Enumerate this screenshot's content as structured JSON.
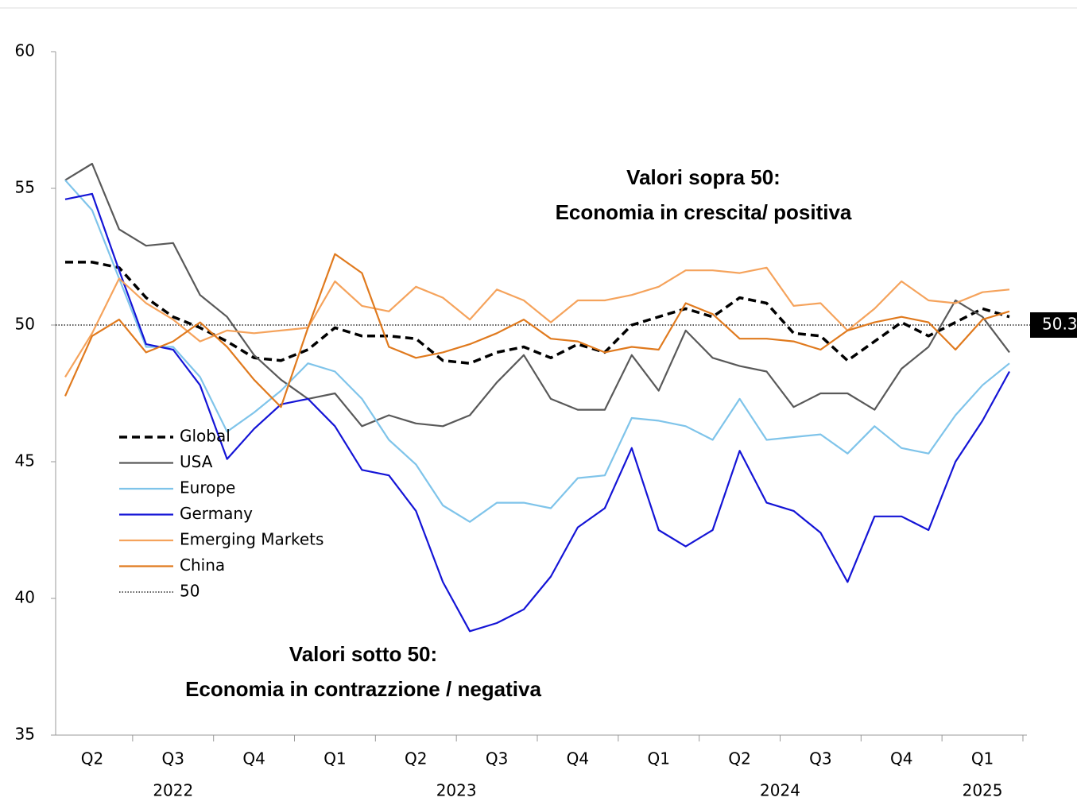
{
  "chart_data": {
    "type": "line",
    "quarters": [
      "Q2",
      "Q3",
      "Q4",
      "Q1",
      "Q2",
      "Q3",
      "Q4",
      "Q1",
      "Q2",
      "Q3",
      "Q4",
      "Q1"
    ],
    "years": [
      "2022",
      "2023",
      "2024",
      "2025"
    ],
    "ylim": [
      35,
      60
    ],
    "yticks": [
      35,
      40,
      45,
      50,
      55,
      60
    ],
    "series": [
      {
        "name": "Global",
        "color": "#000000",
        "dashed": true,
        "values": [
          52.3,
          52.3,
          52.1,
          51.0,
          50.3,
          49.9,
          49.4,
          48.8,
          48.7,
          49.1,
          49.9,
          49.6,
          49.6,
          49.5,
          48.7,
          48.6,
          49.0,
          49.2,
          48.8,
          49.3,
          49.0,
          50.0,
          50.3,
          50.6,
          50.3,
          51.0,
          50.8,
          49.7,
          49.6,
          48.7,
          49.4,
          50.1,
          49.6,
          50.1,
          50.6,
          50.3
        ]
      },
      {
        "name": "USA",
        "color": "#595959",
        "values": [
          55.3,
          55.9,
          53.5,
          52.9,
          53.0,
          51.1,
          50.3,
          48.9,
          48.0,
          47.3,
          47.5,
          46.3,
          46.7,
          46.4,
          46.3,
          46.7,
          47.9,
          48.9,
          47.3,
          46.9,
          46.9,
          48.9,
          47.6,
          49.8,
          48.8,
          48.5,
          48.3,
          47.0,
          47.5,
          47.5,
          46.9,
          48.4,
          49.2,
          50.9,
          50.3,
          49.0
        ]
      },
      {
        "name": "Europe",
        "color": "#7fc4ea",
        "values": [
          55.3,
          54.2,
          51.7,
          49.2,
          49.2,
          48.1,
          46.1,
          46.8,
          47.6,
          48.6,
          48.3,
          47.3,
          45.8,
          44.9,
          43.4,
          42.8,
          43.5,
          43.5,
          43.3,
          44.4,
          44.5,
          46.6,
          46.5,
          46.3,
          45.8,
          47.3,
          45.8,
          45.9,
          46.0,
          45.3,
          46.3,
          45.5,
          45.3,
          46.7,
          47.8,
          48.6
        ]
      },
      {
        "name": "Germany",
        "color": "#1414d6",
        "values": [
          54.6,
          54.8,
          52.0,
          49.3,
          49.1,
          47.8,
          45.1,
          46.2,
          47.1,
          47.3,
          46.3,
          44.7,
          44.5,
          43.2,
          40.6,
          38.8,
          39.1,
          39.6,
          40.8,
          42.6,
          43.3,
          45.5,
          42.5,
          41.9,
          42.5,
          45.4,
          43.5,
          43.2,
          42.4,
          40.6,
          43.0,
          43.0,
          42.5,
          45.0,
          46.5,
          48.3
        ]
      },
      {
        "name": "Emerging Markets",
        "color": "#f5a35c",
        "values": [
          48.1,
          49.7,
          51.7,
          50.8,
          50.2,
          49.4,
          49.8,
          49.7,
          49.8,
          49.9,
          51.6,
          50.7,
          50.5,
          51.4,
          51.0,
          50.2,
          51.3,
          50.9,
          50.1,
          50.9,
          50.9,
          51.1,
          51.4,
          52.0,
          52.0,
          51.9,
          52.1,
          50.7,
          50.8,
          49.8,
          50.6,
          51.6,
          50.9,
          50.8,
          51.2,
          51.3
        ]
      },
      {
        "name": "China",
        "color": "#e07a1e",
        "values": [
          47.4,
          49.6,
          50.2,
          49.0,
          49.4,
          50.1,
          49.2,
          48.0,
          47.0,
          49.9,
          52.6,
          51.9,
          49.2,
          48.8,
          49.0,
          49.3,
          49.7,
          50.2,
          49.5,
          49.4,
          49.0,
          49.2,
          49.1,
          50.8,
          50.4,
          49.5,
          49.5,
          49.4,
          49.1,
          49.8,
          50.1,
          50.3,
          50.1,
          49.1,
          50.2,
          50.5
        ]
      }
    ],
    "reference_line": {
      "name": "50",
      "value": 50
    },
    "annotations": [
      {
        "lines": [
          "Valori sopra 50:",
          "Economia in crescita/ positiva"
        ]
      },
      {
        "lines": [
          "Valori sotto 50:",
          "Economia in contrazzione / negativa"
        ]
      }
    ]
  }
}
